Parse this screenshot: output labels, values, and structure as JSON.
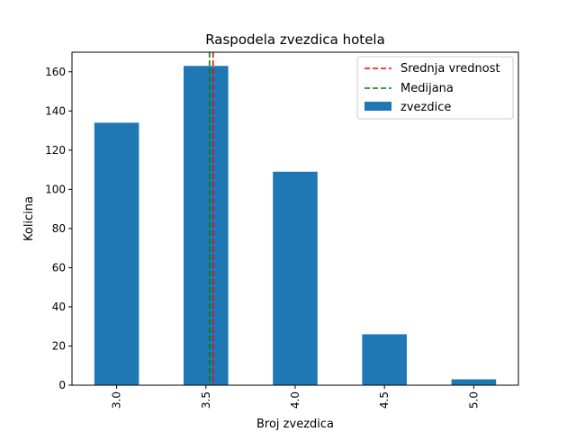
{
  "chart_data": {
    "type": "bar",
    "title": "Raspodela zvezdica hotela",
    "xlabel": "Broj zvezdica",
    "ylabel": "Kolicina",
    "categories": [
      "3.0",
      "3.5",
      "4.0",
      "4.5",
      "5.0"
    ],
    "series": [
      {
        "name": "zvezdice",
        "values": [
          134,
          163,
          109,
          26,
          3
        ],
        "color": "#1f77b4"
      }
    ],
    "ylim": [
      0,
      170
    ],
    "yticks": [
      0,
      20,
      40,
      60,
      80,
      100,
      120,
      140,
      160
    ],
    "reference_lines": [
      {
        "name": "Srednja vrednost",
        "x": 3.54,
        "color": "#ff0000",
        "style": "dashed"
      },
      {
        "name": "Medijana",
        "x": 3.52,
        "color": "#008000",
        "style": "dashed"
      }
    ],
    "legend_position": "top-right",
    "grid": false
  }
}
